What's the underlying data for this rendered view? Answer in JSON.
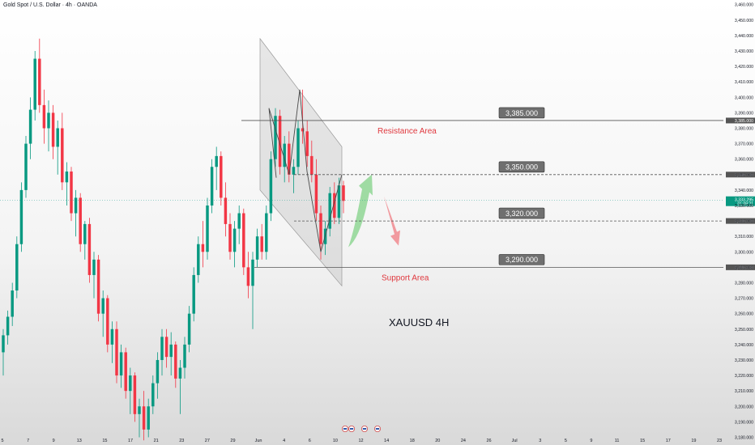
{
  "header": {
    "title": "Gold Spot / U.S. Dollar · 4h · OANDA"
  },
  "colors": {
    "up": "#089981",
    "down": "#f23645",
    "axis_text": "#131722",
    "label_bg": "#6f6f6f",
    "current_bg": "#089981",
    "resistance_text": "#e0383e",
    "support_text": "#e0383e",
    "arrow_up": "#8fd694",
    "arrow_down": "#f0898f"
  },
  "chart_data": {
    "type": "candlestick",
    "symbol": "XAUUSD",
    "timeframe": "4h",
    "ylim": [
      3175,
      3463
    ],
    "y_ticks": [
      3180,
      3190,
      3200,
      3210,
      3220,
      3230,
      3240,
      3250,
      3260,
      3270,
      3280,
      3290,
      3300,
      3310,
      3320,
      3330,
      3340,
      3350,
      3360,
      3370,
      3380,
      3390,
      3400,
      3410,
      3420,
      3430,
      3440,
      3450,
      3460
    ],
    "y_tick_labels": [
      "3,180.000",
      "3,190.000",
      "3,200.000",
      "3,210.000",
      "3,220.000",
      "3,230.000",
      "3,240.000",
      "3,250.000",
      "3,260.000",
      "3,270.000",
      "3,280.000",
      "3,290.000",
      "3,300.000",
      "3,310.000",
      "3,320.000",
      "3,330.000",
      "3,340.000",
      "3,350.000",
      "3,360.000",
      "3,370.000",
      "3,380.000",
      "3,390.000",
      "3,400.000",
      "3,410.000",
      "3,420.000",
      "3,430.000",
      "3,440.000",
      "3,450.000",
      "3,460.000"
    ],
    "x_ticks": [
      "5",
      "7",
      "9",
      "13",
      "15",
      "17",
      "21",
      "23",
      "27",
      "29",
      "Jun",
      "4",
      "6",
      "10",
      "12",
      "14",
      "18",
      "20",
      "24",
      "26",
      "Jul",
      "3",
      "5",
      "9",
      "11",
      "15",
      "17",
      "19",
      "23"
    ],
    "current_price": {
      "value": 3333.295,
      "label": "3,333.295",
      "countdown": "01:09:21"
    },
    "levels": [
      {
        "value": 3385,
        "label": "3,385.000",
        "axis_label": "3,385.000",
        "style": "solid"
      },
      {
        "value": 3350,
        "label": "3,350.000",
        "axis_label": "3,350.000",
        "style": "dashed"
      },
      {
        "value": 3320,
        "label": "3,320.000",
        "axis_label": "3,320.000",
        "style": "dashed"
      },
      {
        "value": 3290,
        "label": "3,290.000",
        "axis_label": "3,290.000",
        "style": "solid"
      }
    ],
    "annotations": {
      "resistance": "Resistance Area",
      "support": "Support Area",
      "symbol_label": "XAUUSD 4H"
    },
    "channel": {
      "upper": [
        3438,
        3368
      ],
      "lower": [
        3340,
        3278
      ]
    },
    "zigzag": [
      3348,
      3393,
      3350,
      3405,
      3352,
      3300,
      3350
    ],
    "forecast_up": [
      3303,
      3348
    ],
    "forecast_down": [
      3336,
      3304
    ],
    "candles": [
      [
        3235,
        3250,
        3220,
        3246
      ],
      [
        3246,
        3262,
        3240,
        3258
      ],
      [
        3258,
        3280,
        3252,
        3275
      ],
      [
        3275,
        3310,
        3270,
        3305
      ],
      [
        3305,
        3345,
        3300,
        3340
      ],
      [
        3340,
        3375,
        3335,
        3370
      ],
      [
        3370,
        3400,
        3360,
        3392
      ],
      [
        3392,
        3430,
        3385,
        3425
      ],
      [
        3425,
        3438,
        3390,
        3395
      ],
      [
        3395,
        3405,
        3370,
        3380
      ],
      [
        3380,
        3398,
        3365,
        3390
      ],
      [
        3390,
        3395,
        3360,
        3368
      ],
      [
        3368,
        3385,
        3350,
        3380
      ],
      [
        3380,
        3390,
        3340,
        3345
      ],
      [
        3345,
        3358,
        3330,
        3352
      ],
      [
        3352,
        3355,
        3320,
        3325
      ],
      [
        3325,
        3340,
        3310,
        3335
      ],
      [
        3335,
        3338,
        3300,
        3305
      ],
      [
        3305,
        3320,
        3295,
        3318
      ],
      [
        3318,
        3322,
        3280,
        3285
      ],
      [
        3285,
        3300,
        3270,
        3295
      ],
      [
        3295,
        3298,
        3255,
        3260
      ],
      [
        3260,
        3275,
        3245,
        3270
      ],
      [
        3270,
        3272,
        3235,
        3240
      ],
      [
        3240,
        3255,
        3228,
        3250
      ],
      [
        3250,
        3255,
        3215,
        3220
      ],
      [
        3220,
        3240,
        3212,
        3235
      ],
      [
        3235,
        3238,
        3205,
        3210
      ],
      [
        3210,
        3225,
        3195,
        3220
      ],
      [
        3220,
        3222,
        3190,
        3195
      ],
      [
        3195,
        3205,
        3180,
        3200
      ],
      [
        3200,
        3210,
        3178,
        3185
      ],
      [
        3185,
        3205,
        3180,
        3200
      ],
      [
        3200,
        3220,
        3195,
        3215
      ],
      [
        3215,
        3235,
        3205,
        3230
      ],
      [
        3230,
        3250,
        3220,
        3245
      ],
      [
        3245,
        3250,
        3225,
        3232
      ],
      [
        3232,
        3248,
        3220,
        3240
      ],
      [
        3240,
        3242,
        3212,
        3218
      ],
      [
        3218,
        3230,
        3195,
        3225
      ],
      [
        3225,
        3245,
        3218,
        3240
      ],
      [
        3240,
        3265,
        3235,
        3260
      ],
      [
        3260,
        3290,
        3255,
        3285
      ],
      [
        3285,
        3310,
        3280,
        3305
      ],
      [
        3305,
        3320,
        3290,
        3300
      ],
      [
        3300,
        3335,
        3295,
        3330
      ],
      [
        3330,
        3360,
        3325,
        3355
      ],
      [
        3355,
        3368,
        3340,
        3362
      ],
      [
        3362,
        3365,
        3330,
        3335
      ],
      [
        3335,
        3345,
        3310,
        3318
      ],
      [
        3318,
        3325,
        3295,
        3300
      ],
      [
        3300,
        3320,
        3290,
        3315
      ],
      [
        3315,
        3330,
        3305,
        3325
      ],
      [
        3325,
        3328,
        3285,
        3290
      ],
      [
        3290,
        3300,
        3270,
        3278
      ],
      [
        3278,
        3300,
        3250,
        3295
      ],
      [
        3295,
        3315,
        3290,
        3310
      ],
      [
        3310,
        3318,
        3295,
        3300
      ],
      [
        3300,
        3330,
        3295,
        3325
      ],
      [
        3325,
        3365,
        3320,
        3360
      ],
      [
        3360,
        3393,
        3355,
        3388
      ],
      [
        3388,
        3392,
        3350,
        3355
      ],
      [
        3355,
        3375,
        3345,
        3370
      ],
      [
        3370,
        3378,
        3345,
        3350
      ],
      [
        3350,
        3360,
        3338,
        3355
      ],
      [
        3355,
        3385,
        3350,
        3380
      ],
      [
        3380,
        3405,
        3370,
        3378
      ],
      [
        3378,
        3385,
        3355,
        3362
      ],
      [
        3362,
        3372,
        3345,
        3350
      ],
      [
        3350,
        3360,
        3320,
        3325
      ],
      [
        3325,
        3330,
        3295,
        3305
      ],
      [
        3305,
        3320,
        3298,
        3315
      ],
      [
        3315,
        3342,
        3310,
        3338
      ],
      [
        3338,
        3345,
        3318,
        3322
      ],
      [
        3322,
        3348,
        3318,
        3343
      ],
      [
        3343,
        3346,
        3325,
        3333
      ]
    ]
  }
}
